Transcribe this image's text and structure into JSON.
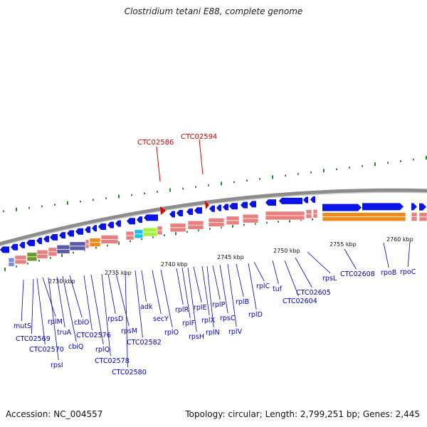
{
  "title": "Clostridium tetani E88, complete genome",
  "footer": {
    "accession": "Accession: NC_004557",
    "topology": "Topology: circular; Length: 2,799,251 bp; Genes: 2,445"
  },
  "colors": {
    "backbone": "#8c8c8c",
    "gene_forward": "#0a14e6",
    "gene_pink": "#e88080",
    "gene_orange": "#f08a1a",
    "tick_green": "#2a8a2a",
    "highlight_label": "#d00000",
    "gene_label": "#0000cc"
  },
  "scale_labels": [
    "2730 kbp",
    "2735 kbp",
    "2740 kbp",
    "2745 kbp",
    "2750 kbp",
    "2755 kbp",
    "2760 kbp"
  ],
  "highlighted_genes": [
    "CTC02586",
    "CTC02594"
  ],
  "gene_labels": [
    "mutS",
    "CTC02569",
    "CTC02570",
    "rpsI",
    "rplM",
    "truA",
    "cbiQ",
    "cbiO",
    "CTC02576",
    "rplQ",
    "CTC02578",
    "rpsD",
    "rpsM",
    "CTC02580",
    "adk",
    "CTC02582",
    "secY",
    "rplO",
    "rplR",
    "rplF",
    "rpsH",
    "rplE",
    "rplX",
    "rplN",
    "rplP",
    "rpsC",
    "rplV",
    "rplB",
    "rplD",
    "rplC",
    "tuf",
    "CTC02604",
    "CTC02605",
    "rpsL",
    "CTC02608",
    "rpoB",
    "rpoC"
  ]
}
